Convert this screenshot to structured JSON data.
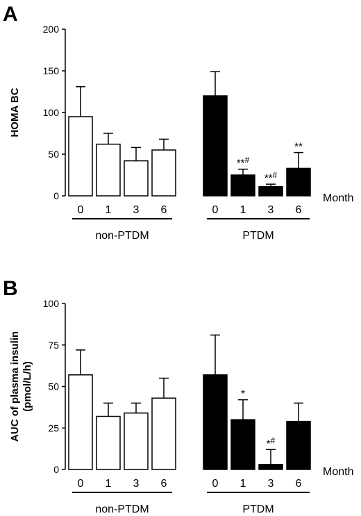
{
  "chart_data": [
    {
      "type": "bar",
      "panel": "A",
      "ylabel": "HOMA BC",
      "ylim": [
        0,
        200
      ],
      "yticks": [
        0,
        50,
        100,
        150,
        200
      ],
      "x_unit_label": "Month",
      "groups": [
        {
          "name": "non-PTDM",
          "fill": "#ffffff",
          "categories": [
            "0",
            "1",
            "3",
            "6"
          ],
          "values": [
            95,
            62,
            42,
            55
          ],
          "errors": [
            36,
            13,
            16,
            13
          ],
          "annotations": [
            "",
            "",
            "",
            ""
          ]
        },
        {
          "name": "PTDM",
          "fill": "#000000",
          "categories": [
            "0",
            "1",
            "3",
            "6"
          ],
          "values": [
            120,
            25,
            11,
            33
          ],
          "errors": [
            29,
            7,
            3,
            19
          ],
          "annotations": [
            "",
            "**#",
            "**#",
            "**"
          ]
        }
      ]
    },
    {
      "type": "bar",
      "panel": "B",
      "ylabel_lines": [
        "AUC of plasma insulin",
        "(pmol/L/h)"
      ],
      "ylim": [
        0,
        100
      ],
      "yticks": [
        0,
        25,
        50,
        75,
        100
      ],
      "x_unit_label": "Month",
      "groups": [
        {
          "name": "non-PTDM",
          "fill": "#ffffff",
          "categories": [
            "0",
            "1",
            "3",
            "6"
          ],
          "values": [
            57,
            32,
            34,
            43
          ],
          "errors": [
            15,
            8,
            6,
            12
          ],
          "annotations": [
            "",
            "",
            "",
            ""
          ]
        },
        {
          "name": "PTDM",
          "fill": "#000000",
          "categories": [
            "0",
            "1",
            "3",
            "6"
          ],
          "values": [
            57,
            30,
            3,
            29
          ],
          "errors": [
            24,
            12,
            9,
            11
          ],
          "annotations": [
            "",
            "*",
            "*#",
            ""
          ]
        }
      ]
    }
  ]
}
